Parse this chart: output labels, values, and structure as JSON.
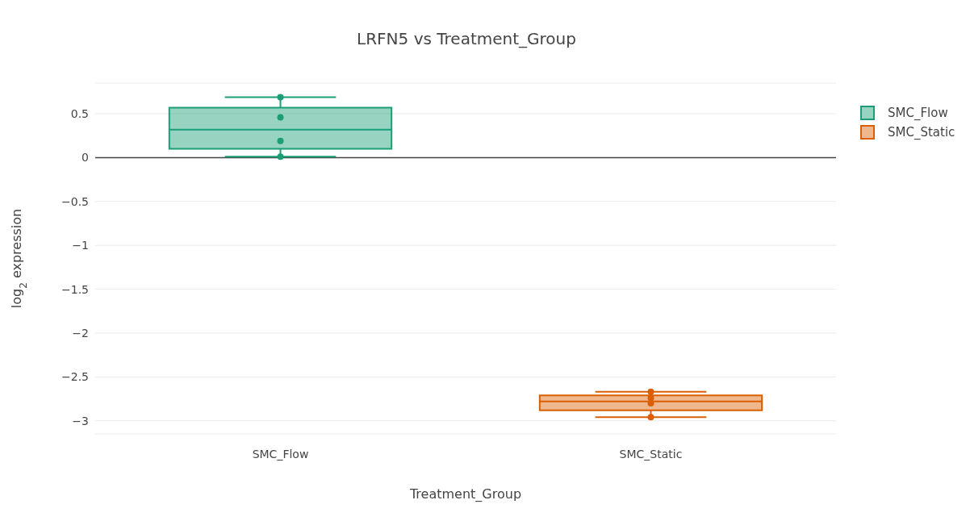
{
  "chart_data": {
    "type": "box",
    "title": "LRFN5 vs Treatment_Group",
    "xlabel": "Treatment_Group",
    "ylabel": "log$_{2}$ expression",
    "categories": [
      "SMC_Flow",
      "SMC_Static"
    ],
    "series": [
      {
        "name": "SMC_Flow",
        "color": "#1b9e77",
        "boxes": [
          {
            "low": 0.01,
            "q1": 0.1,
            "median": 0.32,
            "q3": 0.57,
            "high": 0.69
          },
          null
        ]
      },
      {
        "name": "SMC_Static",
        "color": "#d95f02",
        "boxes": [
          null,
          {
            "low": -2.96,
            "q1": -2.88,
            "median": -2.78,
            "q3": -2.71,
            "high": -2.67
          }
        ]
      },
      {
        "type": "scatter",
        "color": "#1b9e77",
        "x": [
          "SMC_Flow",
          "SMC_Flow",
          "SMC_Flow",
          "SMC_Flow"
        ],
        "values": [
          0.69,
          0.46,
          0.19,
          0.01
        ]
      },
      {
        "type": "scatter",
        "color": "#d95f02",
        "x": [
          "SMC_Static",
          "SMC_Static",
          "SMC_Static",
          "SMC_Static"
        ],
        "values": [
          -2.67,
          -2.74,
          -2.8,
          -2.96
        ]
      }
    ],
    "ylim": [
      -3.15,
      0.85
    ],
    "yticks": [
      0.5,
      0,
      {
        "value": -0.5,
        "label": "−0.5"
      },
      {
        "value": -1,
        "label": "−1"
      },
      {
        "value": -1.5,
        "label": "−1.5"
      },
      {
        "value": -2,
        "label": "−2"
      },
      {
        "value": -2.5,
        "label": "−2.5"
      },
      {
        "value": -3,
        "label": "−3"
      }
    ],
    "grid": "y",
    "legend": "top right",
    "marker": "circle"
  }
}
